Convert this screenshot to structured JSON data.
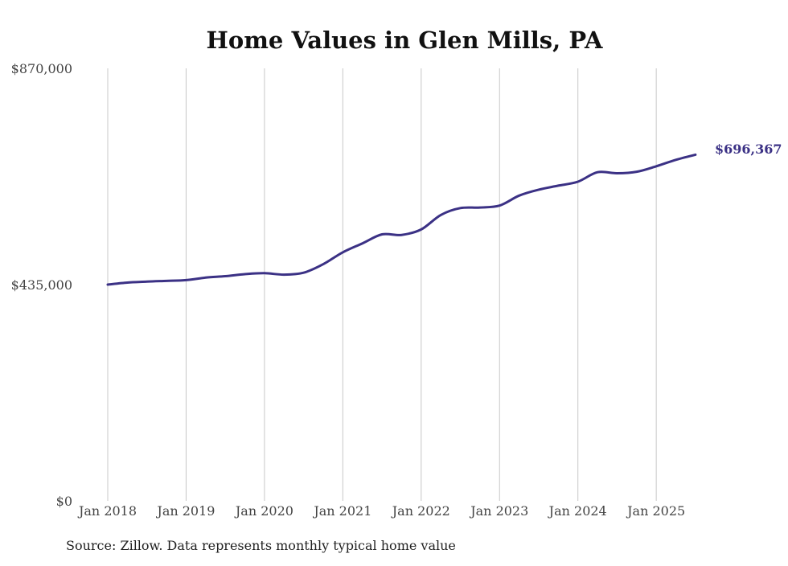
{
  "chart_data": {
    "type": "line",
    "title": "Home Values in Glen Mills, PA",
    "source_note": "Source: Zillow. Data represents monthly typical home value",
    "y_ticks": [
      {
        "value": 870000,
        "label": "$870,000"
      },
      {
        "value": 435000,
        "label": "$435,000"
      },
      {
        "value": 0,
        "label": "$0"
      }
    ],
    "x_ticks": [
      {
        "value": "2018-01",
        "label": "Jan 2018"
      },
      {
        "value": "2019-01",
        "label": "Jan 2019"
      },
      {
        "value": "2020-01",
        "label": "Jan 2020"
      },
      {
        "value": "2021-01",
        "label": "Jan 2021"
      },
      {
        "value": "2022-01",
        "label": "Jan 2022"
      },
      {
        "value": "2023-01",
        "label": "Jan 2023"
      },
      {
        "value": "2024-01",
        "label": "Jan 2024"
      },
      {
        "value": "2025-01",
        "label": "Jan 2025"
      }
    ],
    "ylim": [
      0,
      870000
    ],
    "xlim": [
      "2018-01",
      "2025-08"
    ],
    "vertical_grid": true,
    "horizontal_grid": false,
    "line_color": "#3b3185",
    "end_label": "$696,367",
    "series": [
      {
        "values": [
          {
            "x": "2018-01",
            "y": 435000
          },
          {
            "x": "2018-04",
            "y": 439000
          },
          {
            "x": "2018-07",
            "y": 441000
          },
          {
            "x": "2018-10",
            "y": 442500
          },
          {
            "x": "2019-01",
            "y": 444000
          },
          {
            "x": "2019-04",
            "y": 449000
          },
          {
            "x": "2019-07",
            "y": 452000
          },
          {
            "x": "2019-10",
            "y": 456000
          },
          {
            "x": "2020-01",
            "y": 458000
          },
          {
            "x": "2020-04",
            "y": 455000
          },
          {
            "x": "2020-07",
            "y": 459000
          },
          {
            "x": "2020-10",
            "y": 476000
          },
          {
            "x": "2021-01",
            "y": 500000
          },
          {
            "x": "2021-04",
            "y": 518000
          },
          {
            "x": "2021-07",
            "y": 536000
          },
          {
            "x": "2021-10",
            "y": 535000
          },
          {
            "x": "2022-01",
            "y": 546000
          },
          {
            "x": "2022-04",
            "y": 575000
          },
          {
            "x": "2022-07",
            "y": 589000
          },
          {
            "x": "2022-10",
            "y": 590000
          },
          {
            "x": "2023-01",
            "y": 594000
          },
          {
            "x": "2023-04",
            "y": 614000
          },
          {
            "x": "2023-07",
            "y": 626000
          },
          {
            "x": "2023-10",
            "y": 634000
          },
          {
            "x": "2024-01",
            "y": 642000
          },
          {
            "x": "2024-04",
            "y": 661000
          },
          {
            "x": "2024-07",
            "y": 659000
          },
          {
            "x": "2024-10",
            "y": 662000
          },
          {
            "x": "2025-01",
            "y": 673000
          },
          {
            "x": "2025-04",
            "y": 686000
          },
          {
            "x": "2025-07",
            "y": 696367
          }
        ]
      }
    ]
  }
}
